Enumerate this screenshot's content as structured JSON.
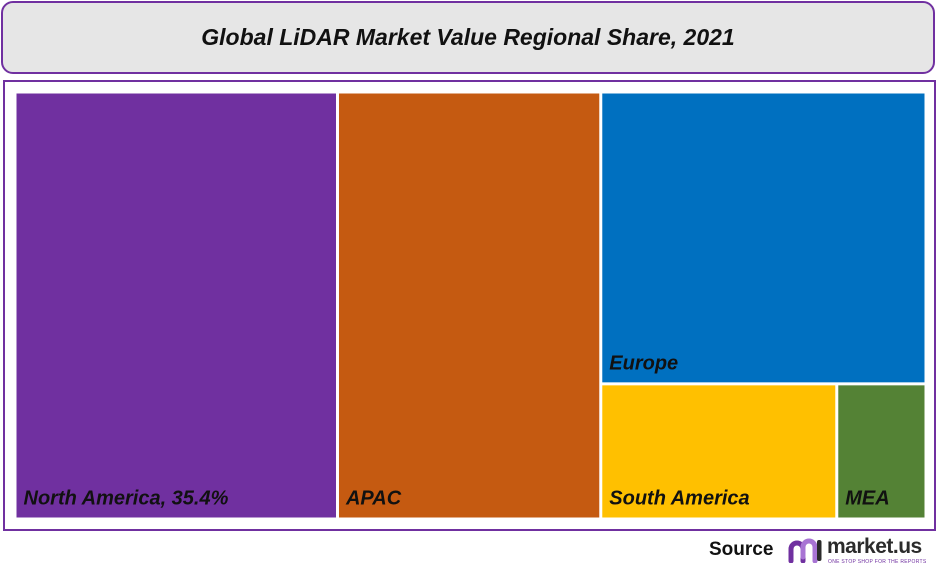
{
  "chart_data": {
    "type": "treemap",
    "title": "Global LiDAR Market Value Regional Share, 2021",
    "series": [
      {
        "name": "North America",
        "label": "North America, 35.4%",
        "value": 35.4,
        "color": "#7030a0"
      },
      {
        "name": "APAC",
        "label": "APAC",
        "value": 28.9,
        "color": "#c55a11"
      },
      {
        "name": "Europe",
        "label": "Europe",
        "value": 24.4,
        "color": "#0070c0"
      },
      {
        "name": "South America",
        "label": "South America",
        "value": 8.2,
        "color": "#ffc000"
      },
      {
        "name": "MEA",
        "label": "MEA",
        "value": 3.1,
        "color": "#548235"
      }
    ]
  },
  "footer": {
    "source_label": "Source",
    "logo_name": "market.us",
    "logo_tagline": "ONE STOP SHOP FOR THE REPORTS"
  },
  "colors": {
    "accent": "#7030a0",
    "title_background": "#e6e6e6"
  }
}
